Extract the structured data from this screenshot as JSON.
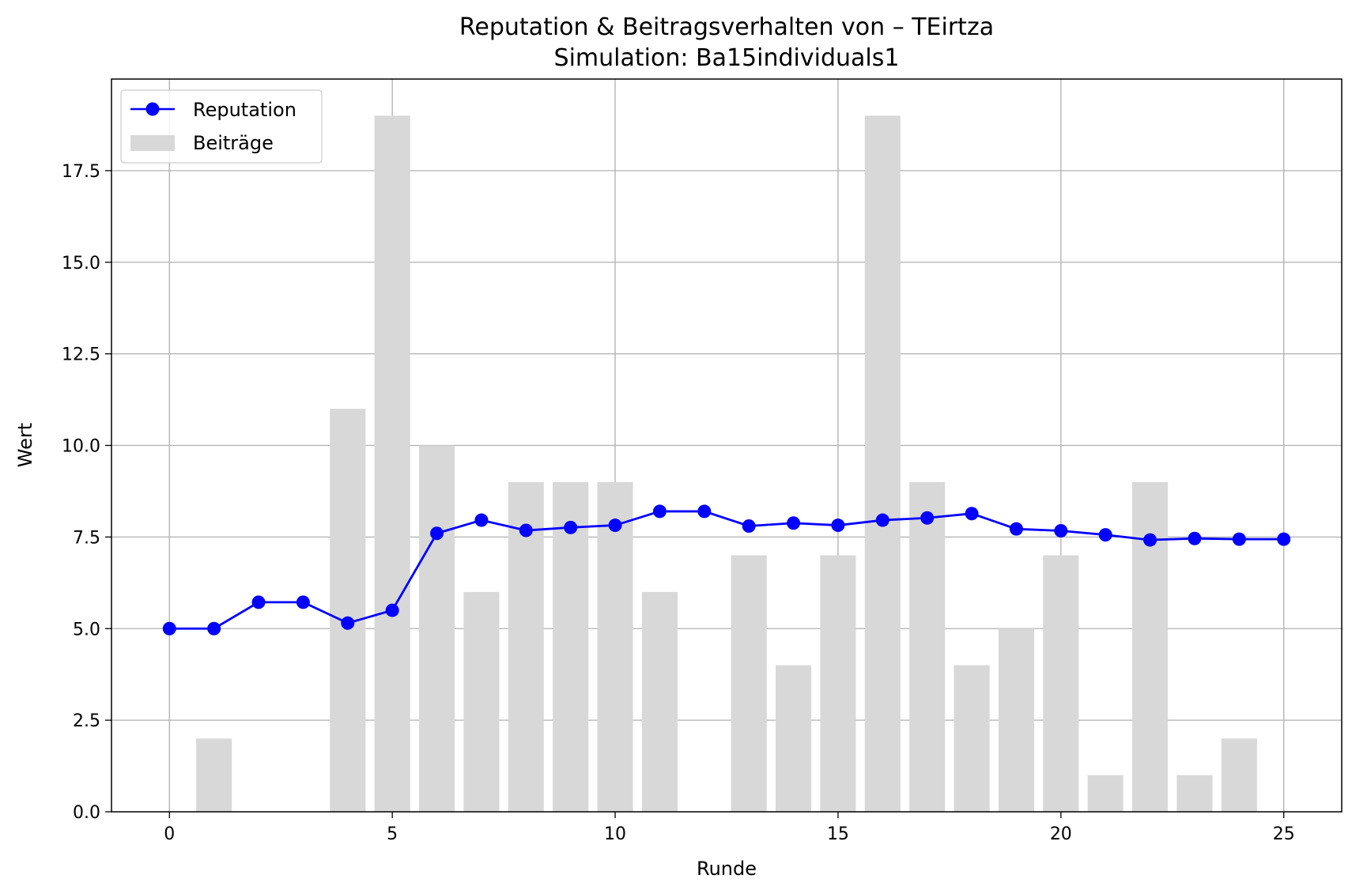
{
  "chart_data": {
    "type": "bar+line",
    "title": "Reputation & Beitragsverhalten von – TEirtza",
    "subtitle": "Simulation: Ba15individuals1",
    "xlabel": "Runde",
    "ylabel": "Wert",
    "xlim": [
      -1.3,
      26.3
    ],
    "ylim": [
      0,
      20
    ],
    "xticks": [
      0,
      5,
      10,
      15,
      20,
      25
    ],
    "yticks": [
      0.0,
      2.5,
      5.0,
      7.5,
      10.0,
      12.5,
      15.0,
      17.5
    ],
    "xtick_labels": [
      "0",
      "5",
      "10",
      "15",
      "20",
      "25"
    ],
    "ytick_labels": [
      "0.0",
      "2.5",
      "5.0",
      "7.5",
      "10.0",
      "12.5",
      "15.0",
      "17.5"
    ],
    "grid": true,
    "legend_position": "top-left",
    "series": [
      {
        "name": "Reputation",
        "kind": "line",
        "color": "#0000ff",
        "marker": "circle",
        "x": [
          0,
          1,
          2,
          3,
          4,
          5,
          6,
          7,
          8,
          9,
          10,
          11,
          12,
          13,
          14,
          15,
          16,
          17,
          18,
          19,
          20,
          21,
          22,
          23,
          24,
          25
        ],
        "y": [
          5.0,
          5.0,
          5.72,
          5.72,
          5.15,
          5.5,
          7.6,
          7.96,
          7.68,
          7.76,
          7.82,
          8.2,
          8.2,
          7.8,
          7.88,
          7.82,
          7.96,
          8.02,
          8.14,
          7.72,
          7.67,
          7.56,
          7.42,
          7.46,
          7.44,
          7.44
        ]
      },
      {
        "name": "Beiträge",
        "kind": "bar",
        "color": "#d8d8d8",
        "x": [
          0,
          1,
          2,
          3,
          4,
          5,
          6,
          7,
          8,
          9,
          10,
          11,
          12,
          13,
          14,
          15,
          16,
          17,
          18,
          19,
          20,
          21,
          22,
          23,
          24,
          25
        ],
        "y": [
          0,
          2,
          0,
          0,
          11,
          19,
          10,
          6,
          9,
          9,
          9,
          6,
          0,
          7,
          4,
          7,
          19,
          9,
          4,
          5,
          7,
          1,
          9,
          1,
          2,
          0
        ]
      }
    ]
  }
}
